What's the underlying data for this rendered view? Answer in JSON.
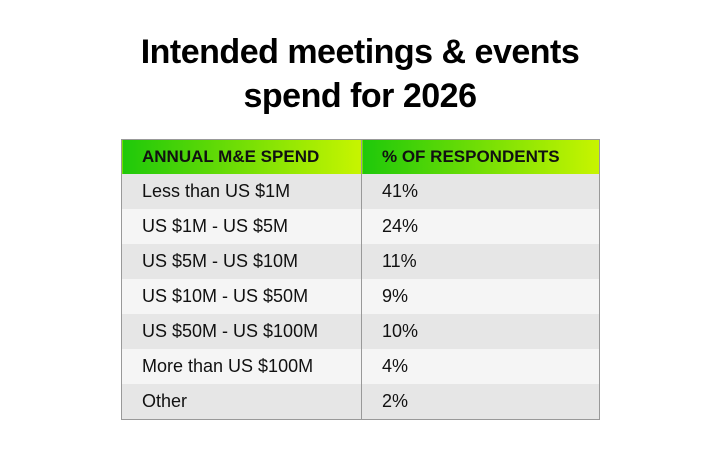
{
  "chart_data": {
    "type": "table",
    "title": "Intended meetings & events spend for 2026",
    "title_lines": [
      "Intended meetings & events",
      "spend for 2026"
    ],
    "columns": [
      "ANNUAL M&E SPEND",
      "% OF RESPONDENTS"
    ],
    "rows": [
      [
        "Less than US $1M",
        "41%"
      ],
      [
        "US $1M - US $5M",
        "24%"
      ],
      [
        "US $5M - US $10M",
        "11%"
      ],
      [
        "US $10M - US $50M",
        "9%"
      ],
      [
        "US $50M - US $100M",
        "10%"
      ],
      [
        "More than US $100M",
        "4%"
      ],
      [
        "Other",
        "2%"
      ]
    ],
    "header_gradient": [
      "#1ec80a",
      "#c8f500"
    ],
    "row_colors": [
      "#e6e6e6",
      "#f5f5f5"
    ]
  }
}
